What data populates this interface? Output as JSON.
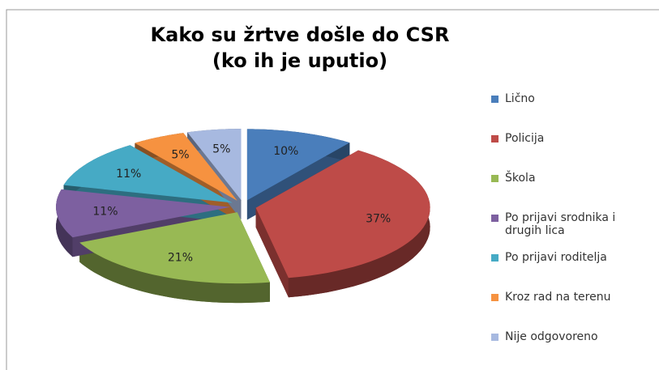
{
  "chart_data": {
    "type": "pie",
    "title": "Kako su žrtve došle do CSR",
    "subtitle": "(ko ih je uputio)",
    "categories": [
      "Lično",
      "Policija",
      "Škola",
      "Po prijavi srodnika i drugih lica",
      "Po prijavi roditelja",
      "Kroz rad na terenu",
      "Nije odgovoreno"
    ],
    "values": [
      10,
      37,
      21,
      11,
      11,
      5,
      5
    ],
    "value_labels": [
      "10%",
      "37%",
      "21%",
      "11%",
      "11%",
      "5%",
      "5%"
    ],
    "colors": [
      "#4a7ebb",
      "#be4b48",
      "#98b954",
      "#7d60a0",
      "#46aac5",
      "#f69240",
      "#a7b9e0"
    ],
    "legend": "right"
  }
}
